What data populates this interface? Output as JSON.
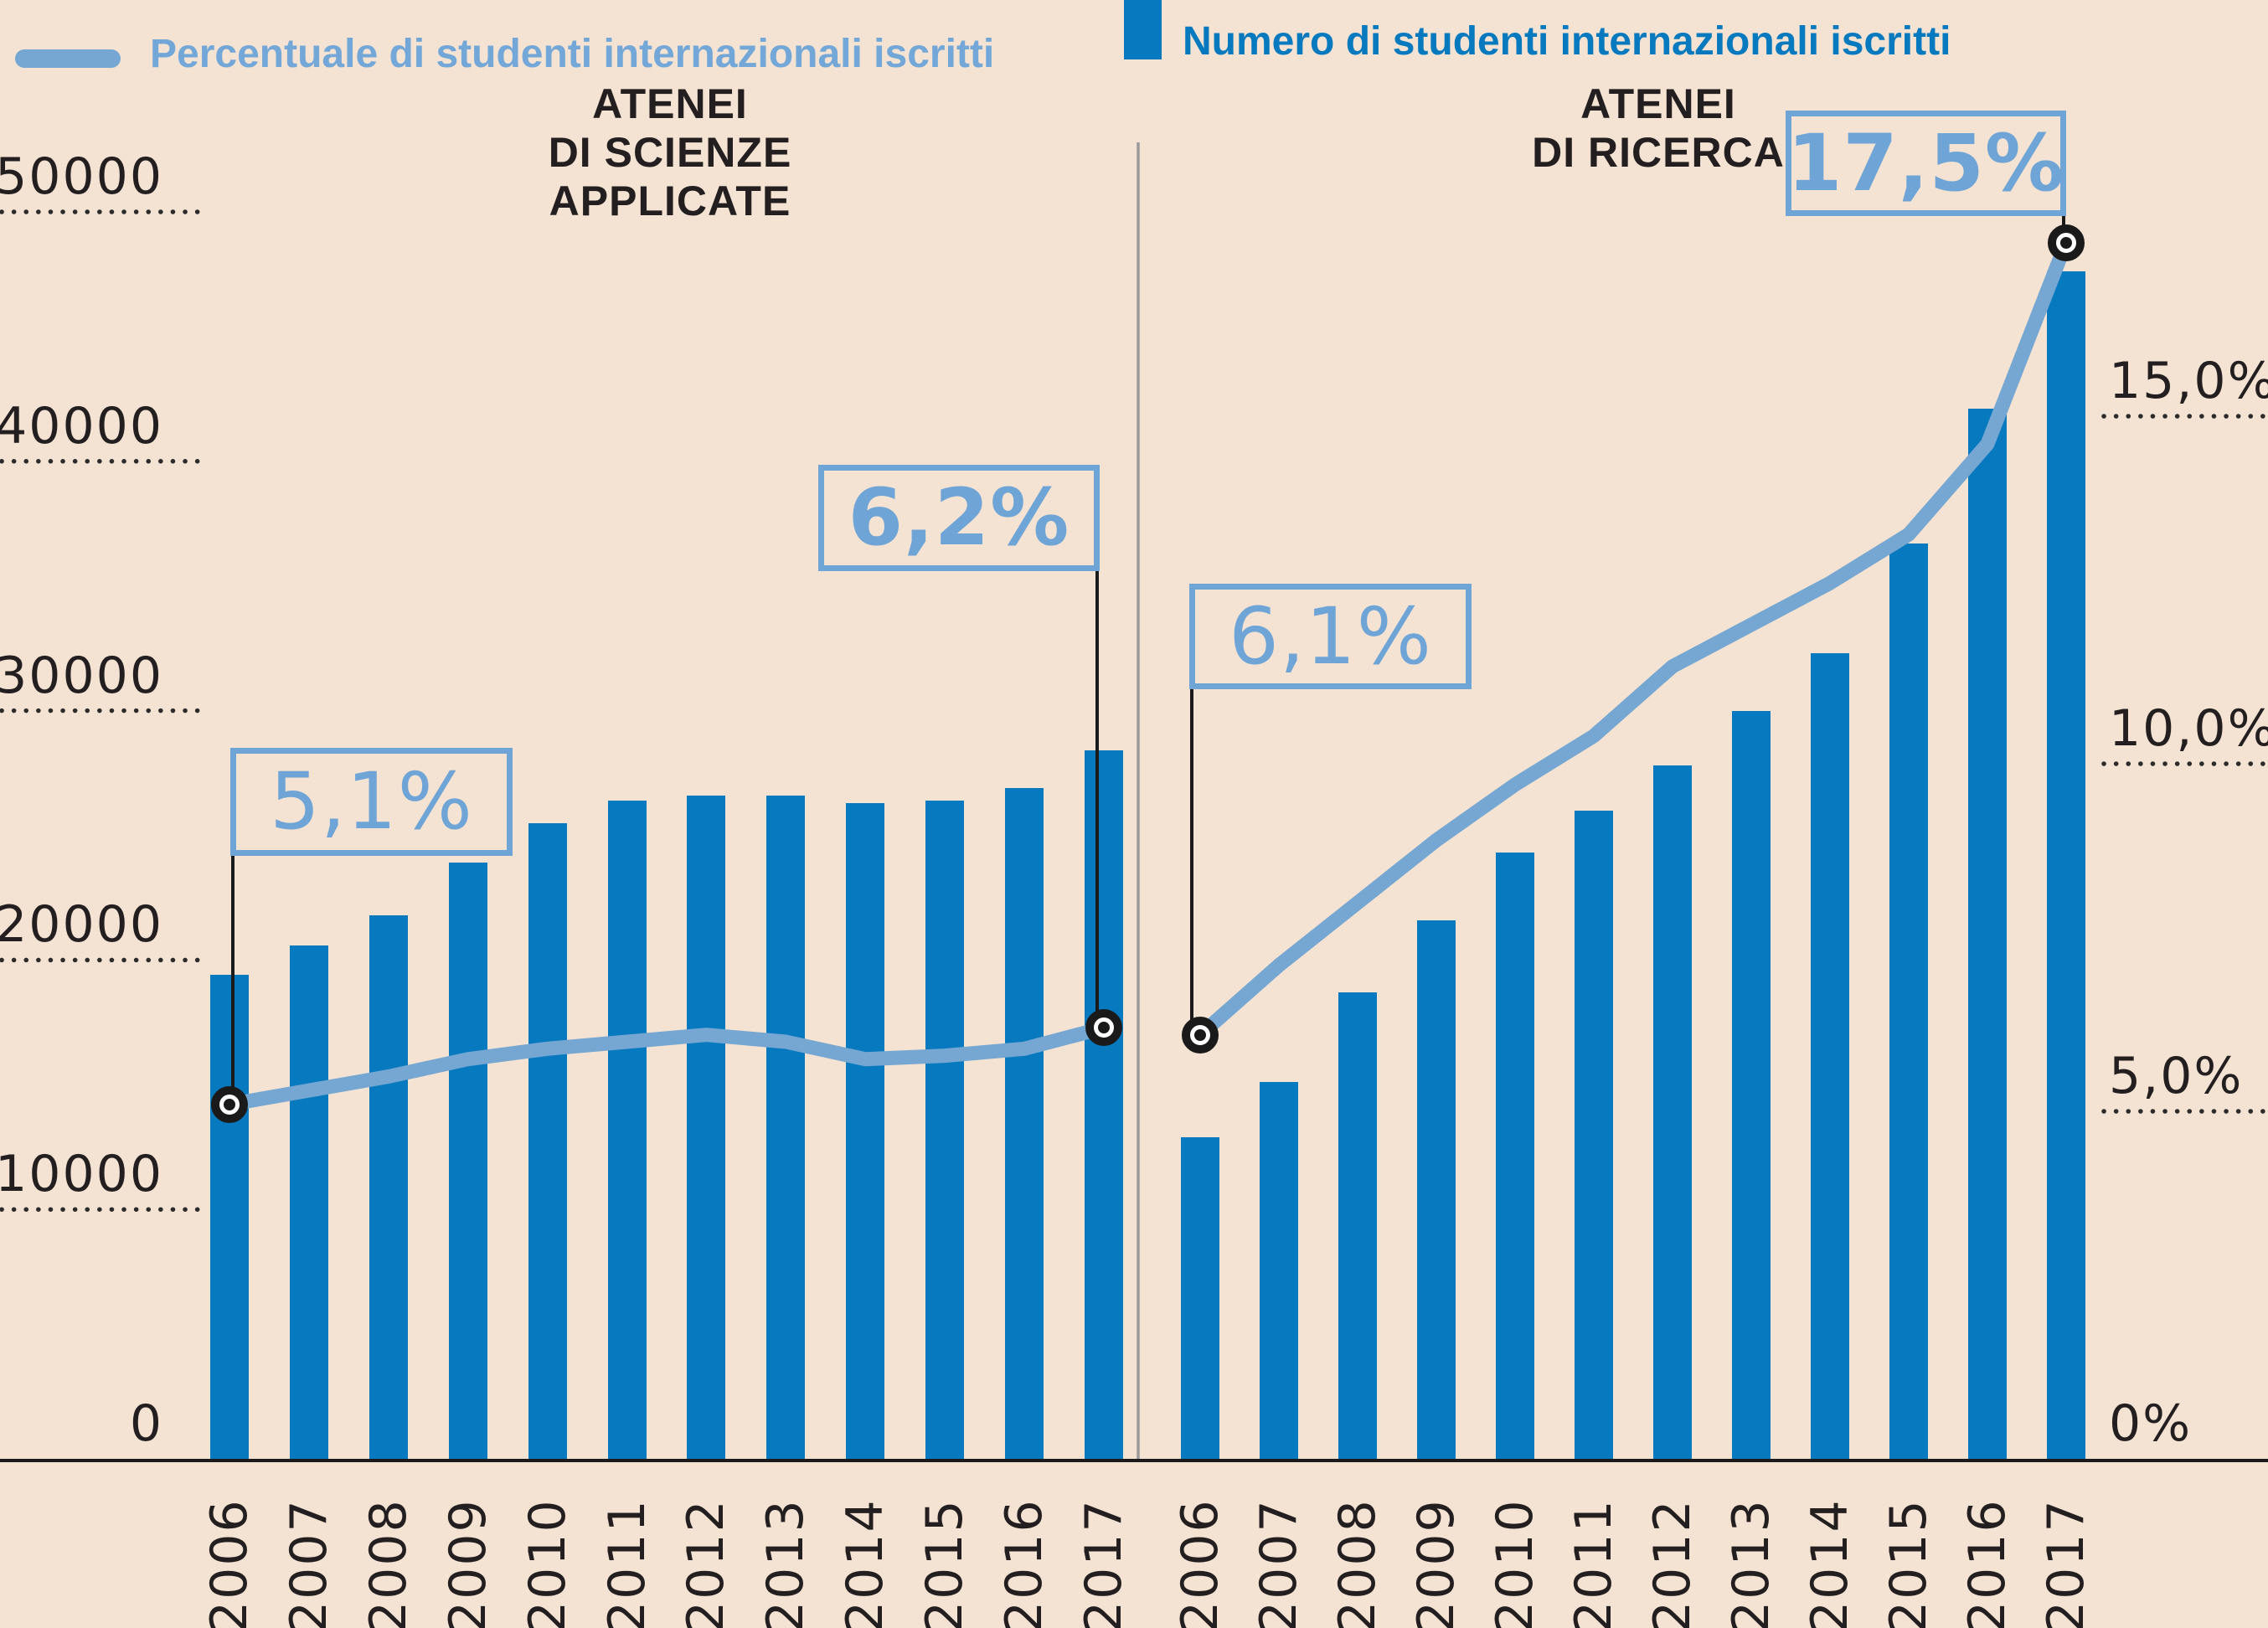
{
  "colors": {
    "background": "#f4e3d2",
    "bar": "#0779bf",
    "line": "#75a7d2",
    "callout": "#6fa4d6",
    "legend_line_text": "#72a7d8",
    "legend_bar_text": "#0779bf",
    "text_dark": "#231f20",
    "axis_line": "#1a1a1a",
    "divider": "#9a9a9a",
    "grid_dot": "#2b2b2b",
    "marker_ring": "#1a1a1a",
    "marker_fill": "#ffffff"
  },
  "legend": {
    "line": {
      "label": "Percentuale di studenti internazionali iscritti"
    },
    "bar": {
      "label": "Numero di studenti internazionali iscritti"
    }
  },
  "left_axis": {
    "unit": "studenti",
    "range": [
      0,
      50000
    ],
    "ticks": [
      {
        "label": "50000",
        "value": 50000
      },
      {
        "label": "40000",
        "value": 40000
      },
      {
        "label": "30000",
        "value": 30000
      },
      {
        "label": "20000",
        "value": 20000
      },
      {
        "label": "10000",
        "value": 10000
      },
      {
        "label": "0",
        "value": 0
      }
    ]
  },
  "right_axis": {
    "unit": "percento",
    "range": [
      0,
      17.5
    ],
    "ticks": [
      {
        "label": "15,0%",
        "value": 15
      },
      {
        "label": "10,0%",
        "value": 10
      },
      {
        "label": "5,0%",
        "value": 5
      },
      {
        "label": "0%",
        "value": 0
      }
    ]
  },
  "chart_data": [
    {
      "type": "bar+line",
      "title_lines": [
        "ATENEI",
        "DI SCIENZE",
        "APPLICATE"
      ],
      "categories": [
        "2006",
        "2007",
        "2008",
        "2009",
        "2010",
        "2011",
        "2012",
        "2013",
        "2014",
        "2015",
        "2016",
        "2017"
      ],
      "series": [
        {
          "name": "Numero di studenti internazionali iscritti",
          "type": "bar",
          "axis": "count",
          "values": [
            19400,
            20600,
            21800,
            23900,
            25500,
            26400,
            26600,
            26600,
            26300,
            26400,
            26900,
            28400
          ]
        },
        {
          "name": "Percentuale di studenti internazionali iscritti",
          "type": "line",
          "axis": "percent",
          "values": [
            5.1,
            5.3,
            5.5,
            5.75,
            5.9,
            6.0,
            6.1,
            6.0,
            5.75,
            5.8,
            5.9,
            6.2
          ]
        }
      ],
      "annotations": [
        {
          "label": "5,1%",
          "year": "2006",
          "bold": false
        },
        {
          "label": "6,2%",
          "year": "2017",
          "bold": true
        }
      ]
    },
    {
      "type": "bar+line",
      "title_lines": [
        "ATENEI",
        "DI RICERCA"
      ],
      "categories": [
        "2006",
        "2007",
        "2008",
        "2009",
        "2010",
        "2011",
        "2012",
        "2013",
        "2014",
        "2015",
        "2016",
        "2017"
      ],
      "series": [
        {
          "name": "Numero di studenti internazionali iscritti",
          "type": "bar",
          "axis": "count",
          "values": [
            12900,
            15100,
            18700,
            21600,
            24300,
            26000,
            27800,
            30000,
            32300,
            36700,
            42100,
            47600
          ]
        },
        {
          "name": "Percentuale di studenti internazionali iscritti",
          "type": "line",
          "axis": "percent",
          "values": [
            6.1,
            7.1,
            8.0,
            8.9,
            9.7,
            10.4,
            11.4,
            12.0,
            12.6,
            13.3,
            14.6,
            17.5
          ]
        }
      ],
      "annotations": [
        {
          "label": "6,1%",
          "year": "2006",
          "bold": false
        },
        {
          "label": "17,5%",
          "year": "2017",
          "bold": true
        }
      ]
    }
  ]
}
